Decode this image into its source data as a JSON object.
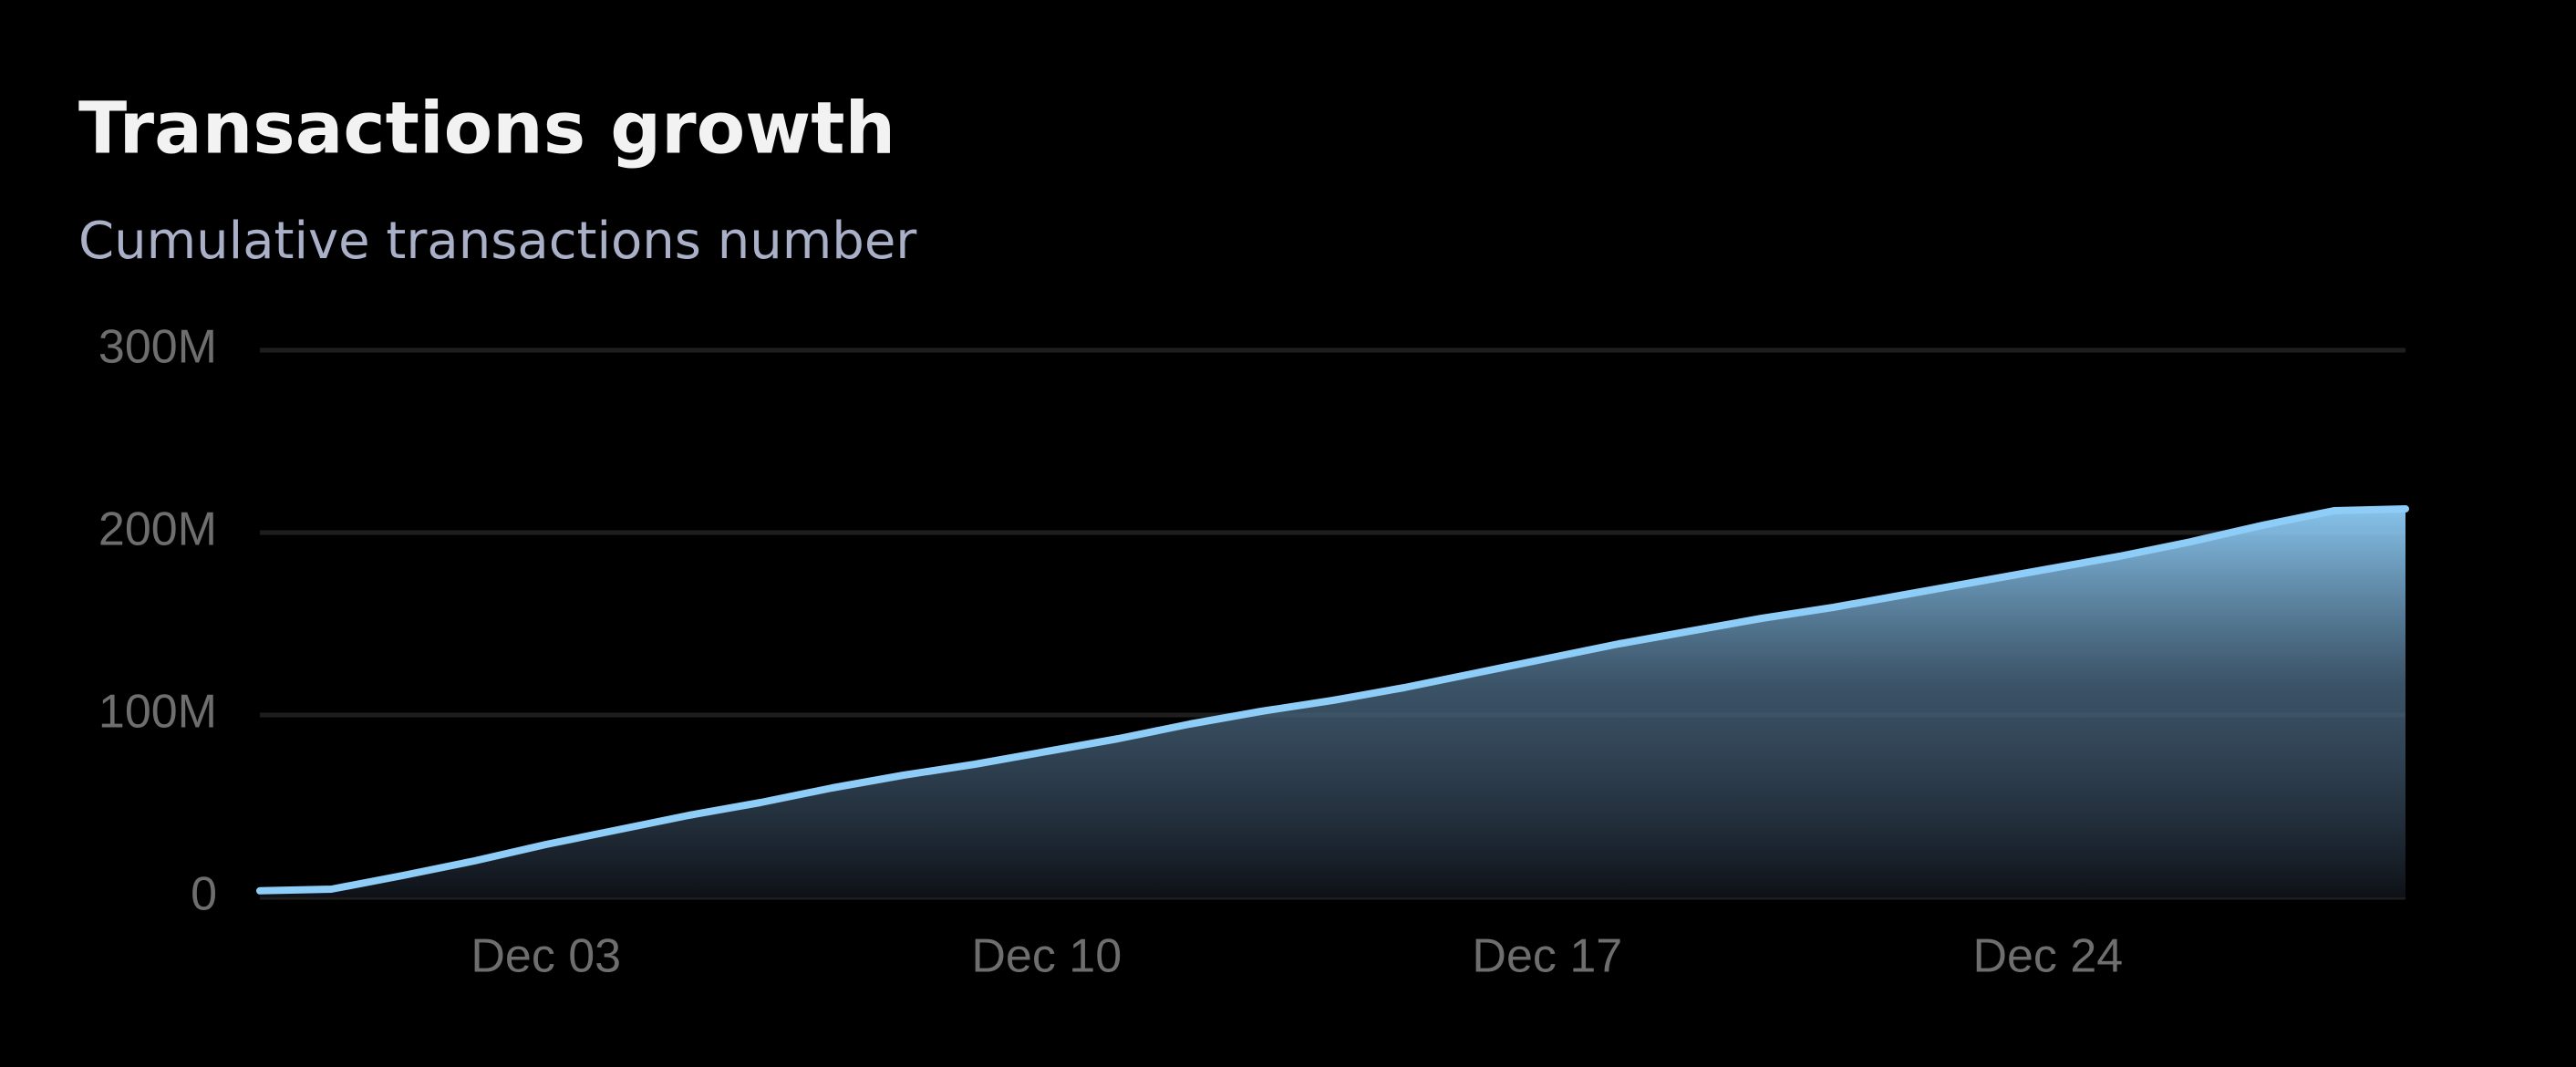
{
  "chart_data": {
    "type": "area",
    "title": "Transactions growth",
    "subtitle": "Cumulative transactions number",
    "categories": [
      null,
      null,
      null,
      null,
      "Dec 03",
      null,
      null,
      null,
      null,
      null,
      null,
      "Dec 10",
      null,
      null,
      null,
      null,
      null,
      null,
      "Dec 17",
      null,
      null,
      null,
      null,
      null,
      null,
      "Dec 24",
      null,
      null,
      null,
      null,
      null
    ],
    "series": [
      {
        "name": "Transactions",
        "color": "#8ecdf7",
        "values": [
          3600000,
          4500000,
          12000000,
          20000000,
          29000000,
          37000000,
          45000000,
          52000000,
          60000000,
          67000000,
          73000000,
          80000000,
          87000000,
          95000000,
          102000000,
          108000000,
          115000000,
          123000000,
          131000000,
          139000000,
          146000000,
          153000000,
          159000000,
          166000000,
          173000000,
          180000000,
          187000000,
          195000000,
          204000000,
          212000000,
          213000000
        ]
      }
    ],
    "ylim": [
      0,
      300000000
    ],
    "yticks": [
      0,
      {
        "value": 100000000,
        "label": "100M"
      },
      {
        "value": 200000000,
        "label": "200M"
      },
      {
        "value": 300000000,
        "label": "300M"
      }
    ],
    "grid": true
  }
}
